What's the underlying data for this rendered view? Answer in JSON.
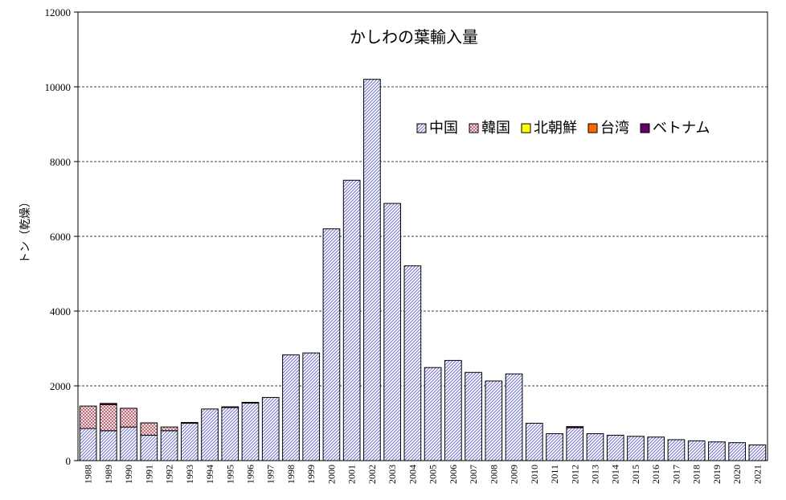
{
  "chart_data": {
    "type": "bar",
    "stacked": true,
    "title": "かしわの葉輸入量",
    "xlabel": "",
    "ylabel": "トン（乾燥）",
    "ylim": [
      0,
      12000
    ],
    "yticks": [
      0,
      2000,
      4000,
      6000,
      8000,
      10000,
      12000
    ],
    "grid": true,
    "legend_position": "upper-right",
    "categories": [
      "1988",
      "1989",
      "1990",
      "1991",
      "1992",
      "1993",
      "1994",
      "1995",
      "1996",
      "1997",
      "1998",
      "1999",
      "2000",
      "2001",
      "2002",
      "2003",
      "2004",
      "2005",
      "2006",
      "2007",
      "2008",
      "2009",
      "2010",
      "2011",
      "2012",
      "2013",
      "2014",
      "2015",
      "2016",
      "2017",
      "2018",
      "2019",
      "2020",
      "2021"
    ],
    "series": [
      {
        "name": "中国",
        "color": "#c8c8f0",
        "pattern": "diagonal-hatch",
        "values": [
          860,
          800,
          900,
          680,
          800,
          1000,
          1380,
          1420,
          1540,
          1690,
          2830,
          2880,
          6200,
          7500,
          10200,
          6880,
          5210,
          2490,
          2680,
          2360,
          2130,
          2320,
          1000,
          720,
          880,
          720,
          680,
          650,
          630,
          560,
          530,
          500,
          480,
          420
        ]
      },
      {
        "name": "韓国",
        "color": "#f0c8c8",
        "pattern": "cross-hatch",
        "values": [
          600,
          700,
          500,
          330,
          100,
          20,
          0,
          20,
          20,
          0,
          0,
          0,
          0,
          0,
          0,
          0,
          0,
          0,
          0,
          0,
          0,
          0,
          0,
          0,
          0,
          0,
          0,
          0,
          0,
          0,
          0,
          0,
          0,
          0
        ]
      },
      {
        "name": "北朝鮮",
        "color": "#ffff00",
        "values": [
          0,
          0,
          0,
          0,
          0,
          0,
          0,
          0,
          0,
          0,
          0,
          0,
          0,
          0,
          0,
          0,
          0,
          0,
          0,
          0,
          0,
          0,
          0,
          0,
          0,
          0,
          0,
          0,
          0,
          0,
          0,
          0,
          0,
          0
        ]
      },
      {
        "name": "台湾",
        "color": "#ff6600",
        "values": [
          0,
          0,
          0,
          0,
          0,
          0,
          0,
          0,
          0,
          0,
          0,
          0,
          0,
          0,
          0,
          0,
          0,
          0,
          0,
          0,
          0,
          0,
          0,
          0,
          0,
          0,
          0,
          0,
          0,
          0,
          0,
          0,
          0,
          0
        ]
      },
      {
        "name": "ベトナム",
        "color": "#660066",
        "values": [
          0,
          30,
          0,
          0,
          0,
          0,
          0,
          0,
          0,
          0,
          0,
          0,
          0,
          0,
          0,
          0,
          0,
          0,
          0,
          0,
          0,
          0,
          0,
          0,
          30,
          0,
          0,
          0,
          0,
          0,
          0,
          0,
          0,
          0
        ]
      }
    ]
  }
}
